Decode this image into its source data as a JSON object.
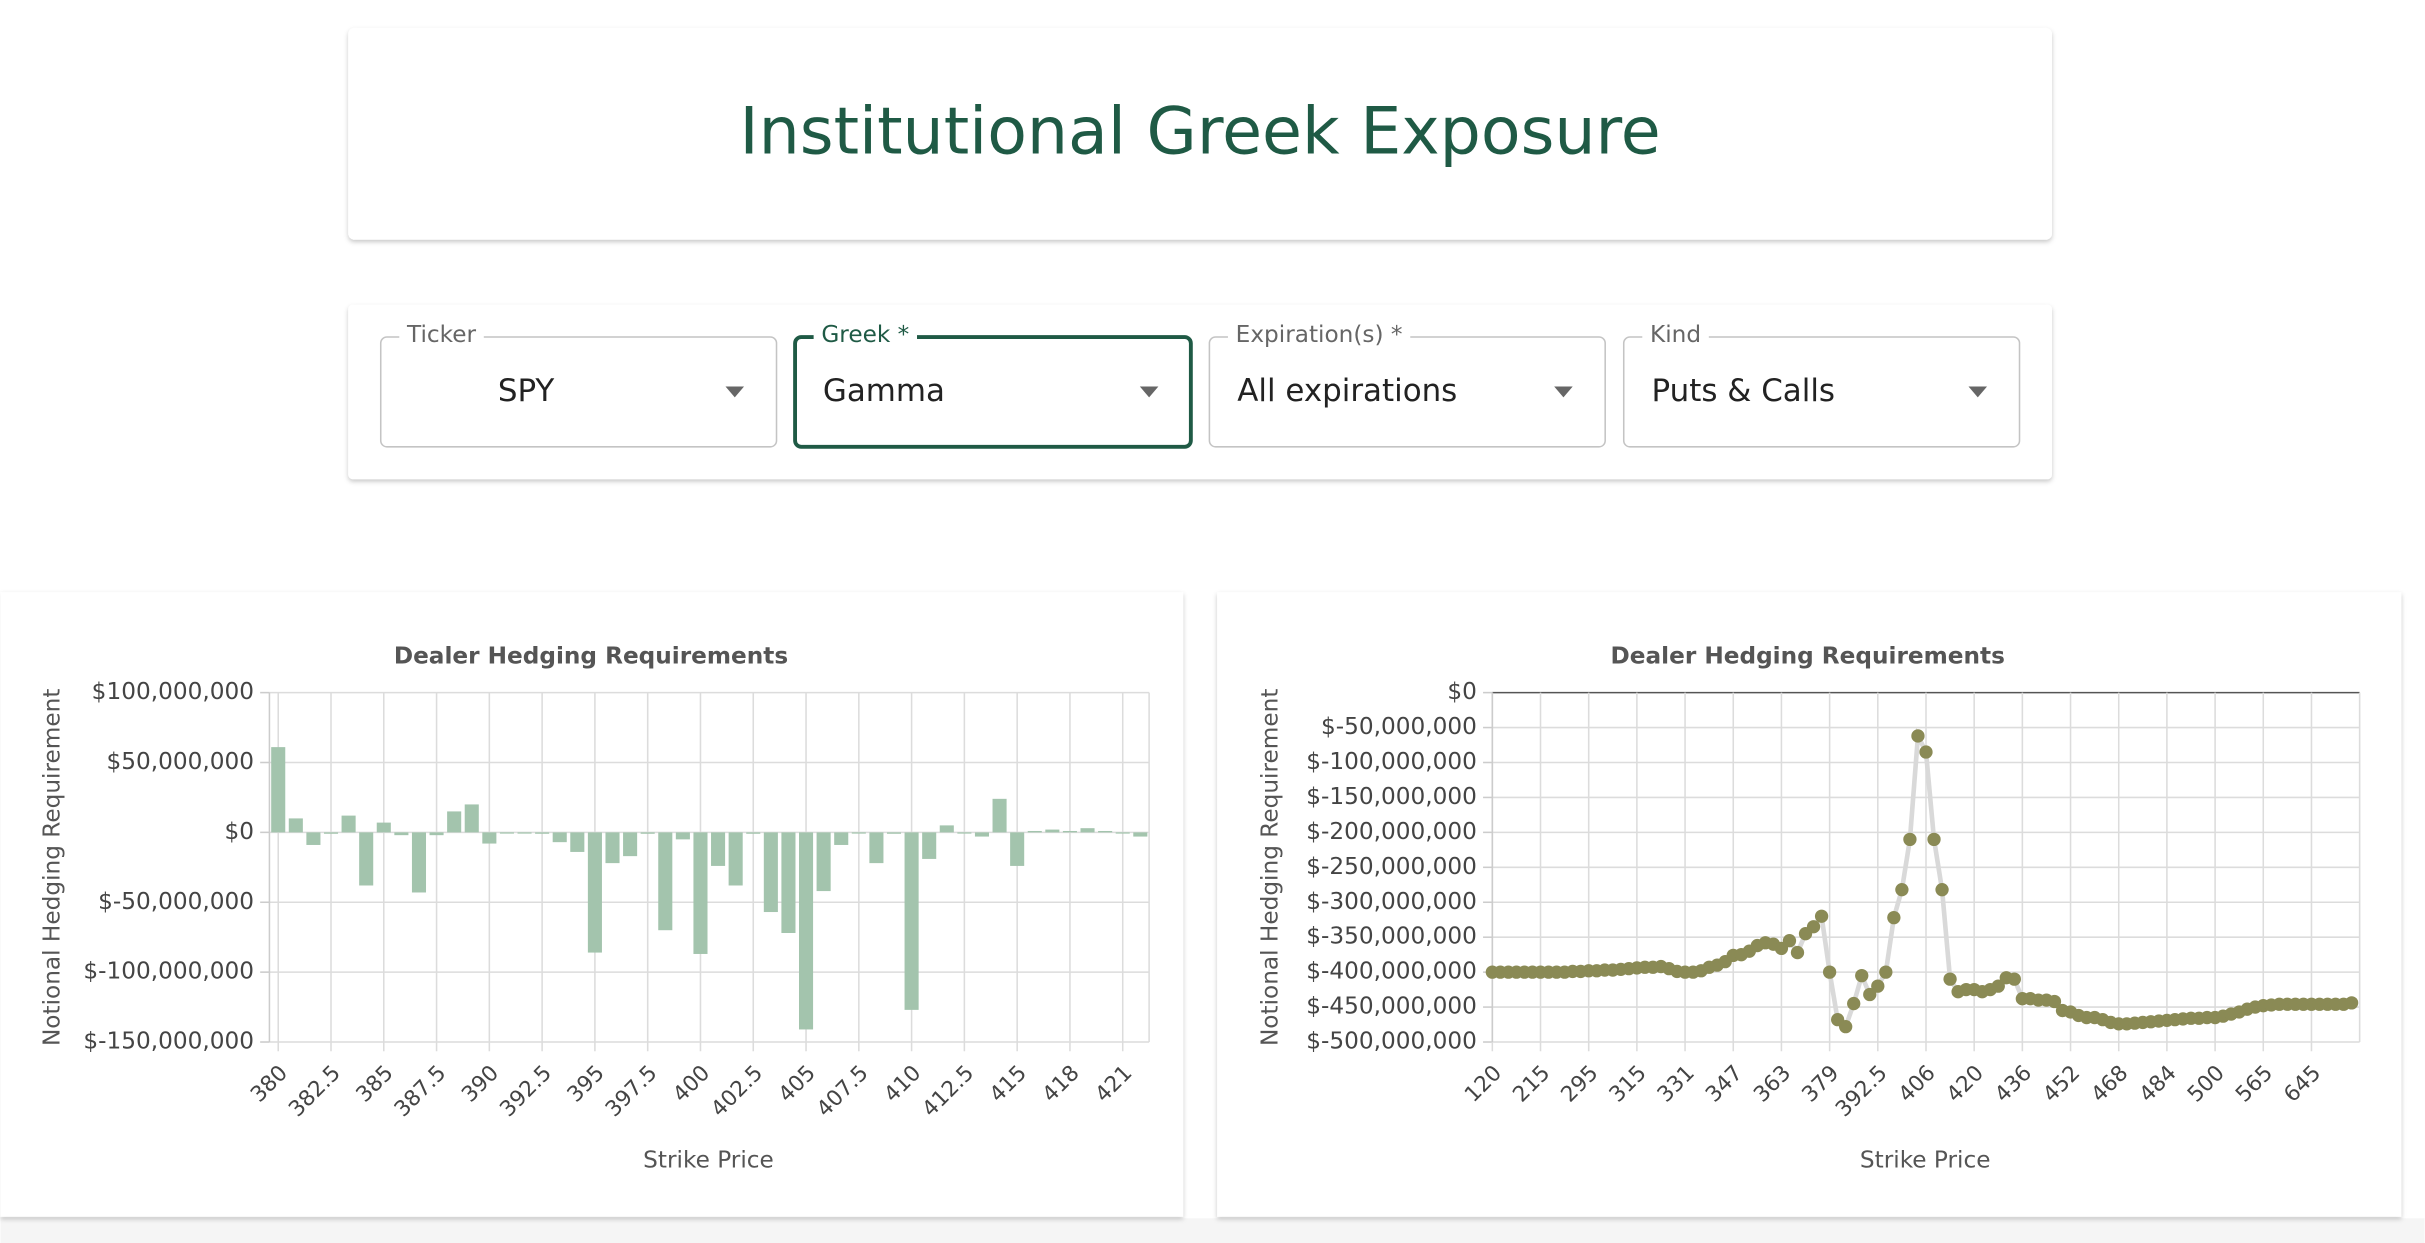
{
  "header": {
    "title": "Institutional Greek Exposure"
  },
  "filters": [
    {
      "label": "Ticker",
      "value": "SPY"
    },
    {
      "label": "Greek *",
      "value": "Gamma"
    },
    {
      "label": "Expiration(s) *",
      "value": "All expirations"
    },
    {
      "label": "Kind",
      "value": "Puts & Calls"
    }
  ],
  "chart_data": [
    {
      "type": "bar",
      "title": "Dealer Hedging Requirements",
      "x_label": "Strike Price",
      "y_label": "Notional Hedging Requirement",
      "categories": [
        "380",
        null,
        null,
        "382.5",
        null,
        null,
        "385",
        null,
        null,
        "387.5",
        null,
        null,
        "390",
        null,
        null,
        "392.5",
        null,
        null,
        "395",
        null,
        null,
        "397.5",
        null,
        null,
        "400",
        null,
        null,
        "402.5",
        null,
        null,
        "405",
        null,
        null,
        "407.5",
        null,
        null,
        "410",
        null,
        null,
        "412.5",
        null,
        null,
        "415",
        null,
        null,
        "418",
        null,
        null,
        "421",
        null
      ],
      "values": [
        61000000,
        10000000,
        -9000000,
        -1000000,
        12000000,
        -38000000,
        7000000,
        -2000000,
        -43000000,
        -2000000,
        15000000,
        20000000,
        -8000000,
        0,
        0,
        -1000000,
        -7000000,
        -14000000,
        -86000000,
        -22000000,
        -17000000,
        -1000000,
        -70000000,
        -5000000,
        -87000000,
        -24000000,
        -38000000,
        -1000000,
        -57000000,
        -72000000,
        -141000000,
        -42000000,
        -9000000,
        0,
        -22000000,
        -1000000,
        -127000000,
        -19000000,
        5000000,
        0,
        -3000000,
        24000000,
        -24000000,
        1000000,
        2000000,
        1000000,
        3000000,
        1000000,
        0,
        -3000000
      ],
      "color": "#a3c4ad",
      "grid": true,
      "ylim": [
        -150000000,
        100000000
      ],
      "yticks": [
        {
          "value": -150000000,
          "label": "$-150,000,000"
        },
        {
          "value": -100000000,
          "label": "$-100,000,000"
        },
        {
          "value": -50000000,
          "label": "$-50,000,000"
        },
        {
          "value": 0,
          "label": "$0"
        },
        {
          "value": 50000000,
          "label": "$50,000,000"
        },
        {
          "value": 100000000,
          "label": "$100,000,000"
        }
      ]
    },
    {
      "type": "line",
      "title": "Dealer Hedging Requirements",
      "x_label": "Strike Price",
      "y_label": "Notional Hedging Requirement",
      "categories": [
        "120",
        null,
        null,
        null,
        null,
        null,
        "215",
        null,
        null,
        null,
        null,
        null,
        "295",
        null,
        null,
        null,
        null,
        null,
        "315",
        null,
        null,
        null,
        null,
        null,
        "331",
        null,
        null,
        null,
        null,
        null,
        "347",
        null,
        null,
        null,
        null,
        null,
        "363",
        null,
        null,
        null,
        null,
        null,
        "379",
        null,
        null,
        null,
        null,
        null,
        "392.5",
        null,
        null,
        null,
        null,
        null,
        "406",
        null,
        null,
        null,
        null,
        null,
        "420",
        null,
        null,
        null,
        null,
        null,
        "436",
        null,
        null,
        null,
        null,
        null,
        "452",
        null,
        null,
        null,
        null,
        null,
        "468",
        null,
        null,
        null,
        null,
        null,
        "484",
        null,
        null,
        null,
        null,
        null,
        "500",
        null,
        null,
        null,
        null,
        null,
        "565",
        null,
        null,
        null,
        null,
        null,
        "645",
        null,
        null,
        null,
        null,
        null
      ],
      "values": [
        -400000000,
        -400000000,
        -400000000,
        -400000000,
        -400000000,
        -400000000,
        -400000000,
        -400000000,
        -400000000,
        -400000000,
        -399000000,
        -399000000,
        -398000000,
        -398000000,
        -397000000,
        -397000000,
        -396000000,
        -395000000,
        -394000000,
        -393000000,
        -393000000,
        -392000000,
        -395000000,
        -399000000,
        -400000000,
        -400000000,
        -398000000,
        -393000000,
        -390000000,
        -385000000,
        -376000000,
        -375000000,
        -370000000,
        -362000000,
        -358000000,
        -360000000,
        -366000000,
        -355000000,
        -372000000,
        -345000000,
        -335000000,
        -320000000,
        -400000000,
        -468000000,
        -478000000,
        -445000000,
        -405000000,
        -432000000,
        -420000000,
        -400000000,
        -322000000,
        -282000000,
        -210000000,
        -62000000,
        -85000000,
        -210000000,
        -282000000,
        -410000000,
        -428000000,
        -425000000,
        -425000000,
        -428000000,
        -425000000,
        -420000000,
        -408000000,
        -410000000,
        -438000000,
        -438000000,
        -440000000,
        -440000000,
        -442000000,
        -455000000,
        -457000000,
        -462000000,
        -465000000,
        -465000000,
        -468000000,
        -472000000,
        -474000000,
        -474000000,
        -473000000,
        -472000000,
        -471000000,
        -470000000,
        -469000000,
        -468000000,
        -467000000,
        -466000000,
        -466000000,
        -465000000,
        -465000000,
        -463000000,
        -460000000,
        -457000000,
        -453000000,
        -450000000,
        -448000000,
        -447000000,
        -446000000,
        -446000000,
        -446000000,
        -446000000,
        -446000000,
        -446000000,
        -446000000,
        -446000000,
        -446000000,
        -444000000
      ],
      "color": "#8a8a55",
      "line_color": "#d9d9d9",
      "grid": true,
      "ylim": [
        -500000000,
        0
      ],
      "yticks": [
        {
          "value": -500000000,
          "label": "$-500,000,000"
        },
        {
          "value": -450000000,
          "label": "$-450,000,000"
        },
        {
          "value": -400000000,
          "label": "$-400,000,000"
        },
        {
          "value": -350000000,
          "label": "$-350,000,000"
        },
        {
          "value": -300000000,
          "label": "$-300,000,000"
        },
        {
          "value": -250000000,
          "label": "$-250,000,000"
        },
        {
          "value": -200000000,
          "label": "$-200,000,000"
        },
        {
          "value": -150000000,
          "label": "$-150,000,000"
        },
        {
          "value": -100000000,
          "label": "$-100,000,000"
        },
        {
          "value": -50000000,
          "label": "$-50,000,000"
        },
        {
          "value": 0,
          "label": "$0"
        }
      ]
    }
  ]
}
